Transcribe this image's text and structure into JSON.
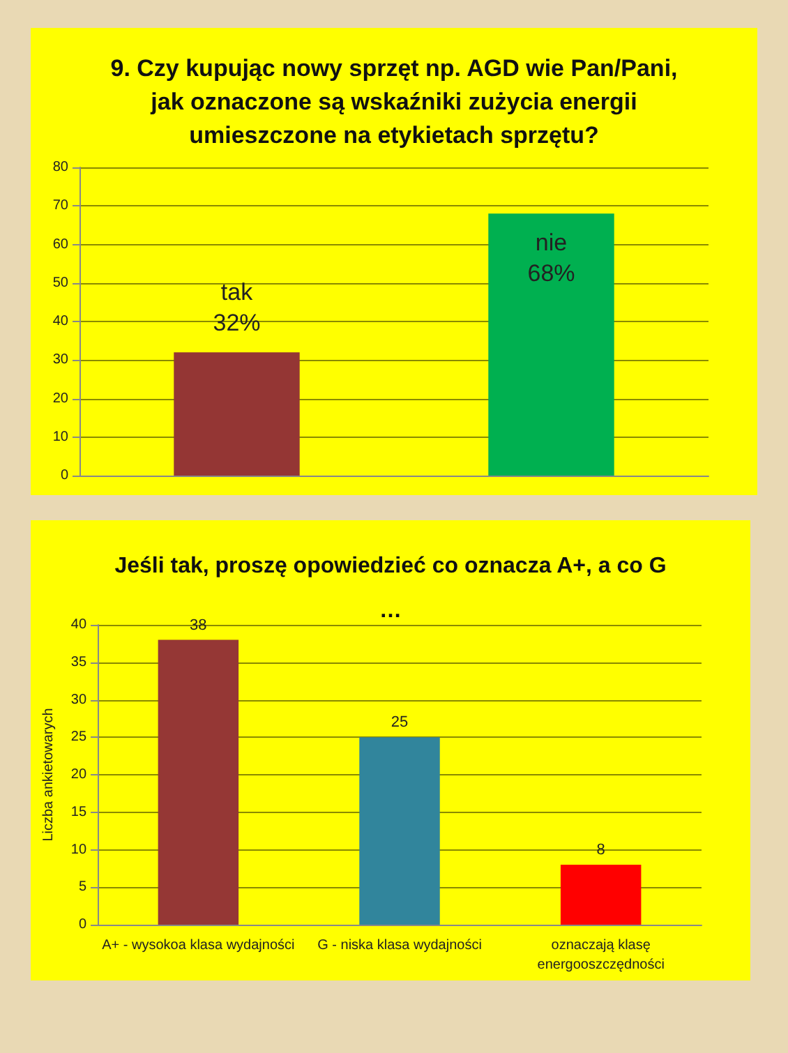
{
  "chart_data": [
    {
      "type": "bar",
      "title": "9. Czy kupując nowy sprzęt np. AGD wie Pan/Pani,\njak oznaczone są wskaźniki zużycia energii\numieszczone na etykietach sprzętu?",
      "categories": [
        "tak",
        "nie"
      ],
      "values": [
        32,
        68
      ],
      "colors": [
        "#943634",
        "#00b050"
      ],
      "value_labels": [
        "32%",
        "68%"
      ],
      "ylim": [
        0,
        80
      ],
      "yticks": [
        0,
        10,
        20,
        30,
        40,
        50,
        60,
        70,
        80
      ],
      "grid": "y",
      "tick_labels": "y"
    },
    {
      "type": "bar",
      "title": "Jeśli tak, proszę opowiedzieć co oznacza A+, a co G\n…",
      "ylabel": "Liczba ankietowarych",
      "categories": [
        "A+ - wysokoa klasa wydajności",
        "G - niska klasa wydajności",
        "oznaczają klasę\nenergooszczędności"
      ],
      "values": [
        38,
        25,
        8
      ],
      "colors": [
        "#953735",
        "#31859c",
        "#ff0000"
      ],
      "data_labels": true,
      "ylim": [
        0,
        40
      ],
      "yticks": [
        0,
        5,
        10,
        15,
        20,
        25,
        30,
        35,
        40
      ],
      "grid": "y"
    }
  ]
}
